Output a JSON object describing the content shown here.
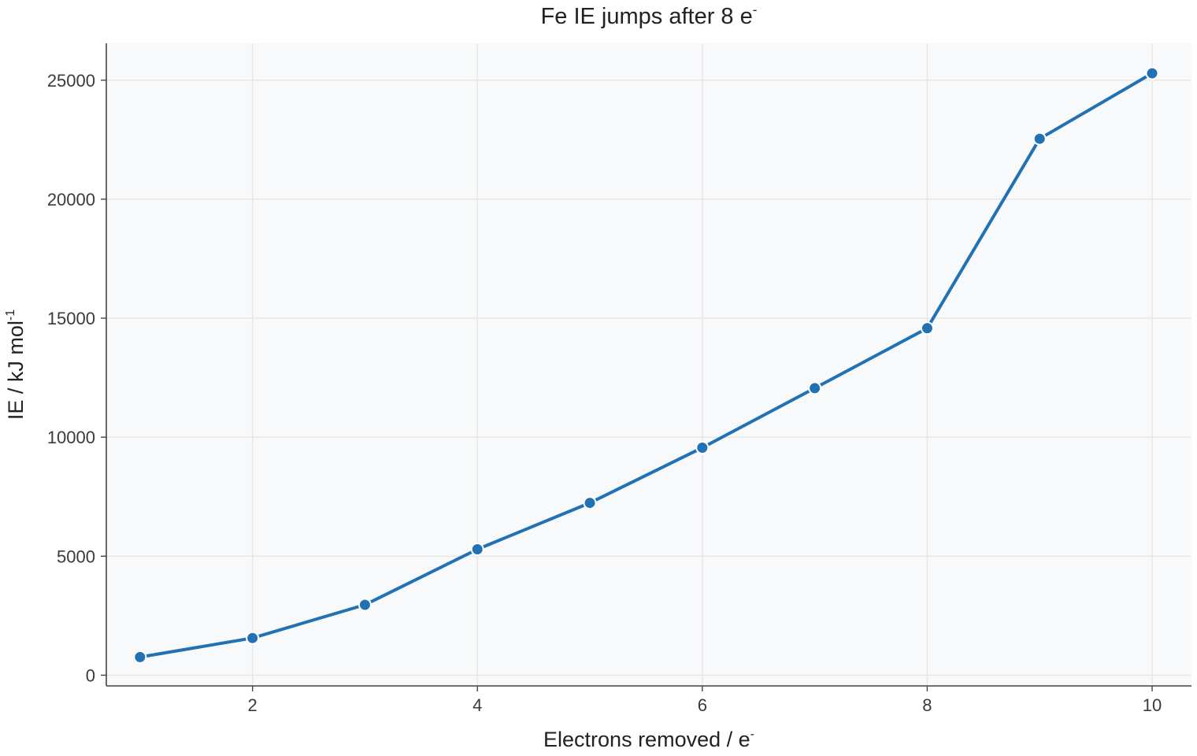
{
  "chart_data": {
    "type": "line",
    "title": "Fe IE jumps after 8 e",
    "title_superscript": "-",
    "xlabel": "Electrons removed / e",
    "xlabel_superscript": "-",
    "ylabel": "IE / kJ mol",
    "ylabel_superscript": "-1",
    "x": [
      1,
      2,
      3,
      4,
      5,
      6,
      7,
      8,
      9,
      10
    ],
    "series": [
      {
        "values": [
          762.5,
          1561.9,
          2957,
          5290,
          7240,
          9560,
          12060,
          14580,
          22540,
          25290
        ],
        "color": "#2171b5"
      }
    ],
    "xlim": [
      0.7,
      10.35
    ],
    "ylim": [
      -450,
      26550
    ],
    "xticks": [
      2,
      4,
      6,
      8,
      10
    ],
    "yticks": [
      0,
      5000,
      10000,
      15000,
      20000,
      25000
    ],
    "grid": true,
    "legend": "none",
    "colors": {
      "plot_background": "#f8f9fa",
      "grid": "#e6e6e6",
      "axis": "#444444",
      "marker_edge": "#ffffff"
    }
  }
}
